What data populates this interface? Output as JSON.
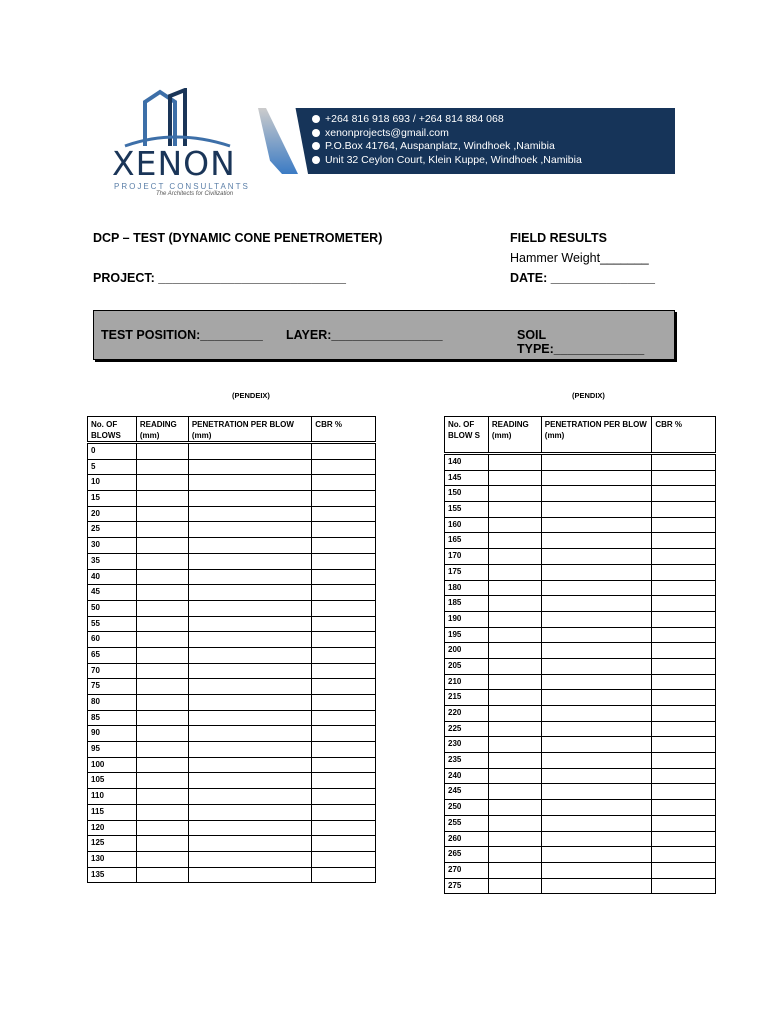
{
  "logo": {
    "name": "XENON",
    "subtitle": "PROJECT CONSULTANTS",
    "tagline": "The Architects for Civilization"
  },
  "banner": {
    "phone": "+264 816 918 693 / +264 814 884 068",
    "email": "xenonprojects@gmail.com",
    "postal": "P.O.Box 41764, Auspanplatz, Windhoek ,Namibia",
    "address": "Unit 32 Ceylon Court, Klein Kuppe, Windhoek ,Namibia",
    "color": "#163459"
  },
  "header": {
    "title": "DCP – TEST (DYNAMIC CONE PENETROMETER)",
    "project": "PROJECT: ___________________________",
    "field_results": "FIELD RESULTS",
    "hammer": "Hammer Weight_______",
    "date": "DATE: _______________"
  },
  "box": {
    "test_position": "TEST POSITION:_________",
    "layer": "LAYER:________________",
    "soil_type": "SOIL TYPE:_____________"
  },
  "left_table": {
    "caption": "(PENDEIX)",
    "headers": [
      "No. OF BLOWS",
      "READING (mm)",
      "PENETRATION PER BLOW (mm)",
      "CBR %"
    ],
    "rows": [
      "0",
      "5",
      "10",
      "15",
      "20",
      "25",
      "30",
      "35",
      "40",
      "45",
      "50",
      "55",
      "60",
      "65",
      "70",
      "75",
      "80",
      "85",
      "90",
      "95",
      "100",
      "105",
      "110",
      "115",
      "120",
      "125",
      "130",
      "135"
    ]
  },
  "right_table": {
    "caption": "(PENDIX)",
    "headers": [
      "No. OF BLOW S",
      "READING (mm)",
      "PENETRATION PER BLOW (mm)",
      "CBR %"
    ],
    "rows": [
      "140",
      "145",
      "150",
      "155",
      "160",
      "165",
      "170",
      "175",
      "180",
      "185",
      "190",
      "195",
      "200",
      "205",
      "210",
      "215",
      "220",
      "225",
      "230",
      "235",
      "240",
      "245",
      "250",
      "255",
      "260",
      "265",
      "270",
      "275"
    ]
  }
}
